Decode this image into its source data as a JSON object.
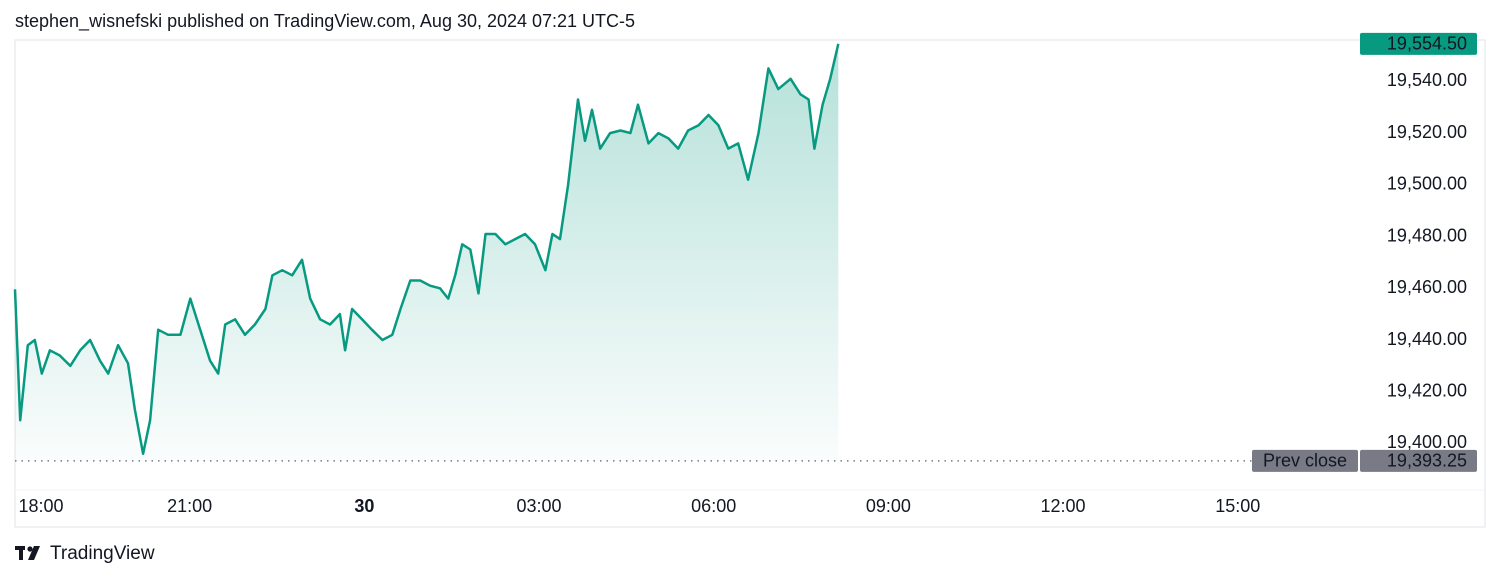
{
  "chart_data": {
    "type": "area",
    "title": "stephen_wisnefski published on TradingView.com, Aug 30, 2024 07:21 UTC-5",
    "brand": "TradingView",
    "grid": false,
    "series": [
      {
        "color": "#089981",
        "x": [
          18.0,
          18.09,
          18.22,
          18.34,
          18.46,
          18.6,
          18.77,
          18.95,
          19.12,
          19.29,
          19.46,
          19.6,
          19.77,
          19.94,
          20.06,
          20.2,
          20.32,
          20.46,
          20.63,
          20.84,
          21.01,
          21.18,
          21.35,
          21.49,
          21.61,
          21.78,
          21.95,
          22.12,
          22.3,
          22.42,
          22.59,
          22.76,
          22.93,
          23.07,
          23.24,
          23.41,
          23.58,
          23.67,
          23.79,
          23.96,
          24.13,
          24.31,
          24.48,
          24.62,
          24.79,
          24.96,
          25.13,
          25.3,
          25.44,
          25.56,
          25.68,
          25.82,
          25.96,
          26.08,
          26.25,
          26.42,
          26.59,
          26.76,
          26.93,
          27.11,
          27.23,
          27.36,
          27.5,
          27.67,
          27.79,
          27.91,
          28.05,
          28.22,
          28.4,
          28.57,
          28.7,
          28.88,
          29.05,
          29.22,
          29.39,
          29.56,
          29.74,
          29.91,
          30.08,
          30.25,
          30.42,
          30.59,
          30.77,
          30.94,
          31.11,
          31.32,
          31.49,
          31.63,
          31.73,
          31.87,
          32.0,
          32.14
        ],
        "values": [
          19459.6,
          19409,
          19438,
          19440,
          19427,
          19436,
          19434,
          19430,
          19436,
          19440,
          19432,
          19427,
          19438,
          19431,
          19413,
          19396,
          19409,
          19444,
          19442,
          19442,
          19456,
          19444,
          19432,
          19427,
          19446,
          19448,
          19442,
          19446,
          19452,
          19465,
          19467,
          19465,
          19471,
          19456,
          19448,
          19446,
          19450,
          19436,
          19452,
          19448,
          19444,
          19440,
          19442,
          19452,
          19463,
          19463,
          19461,
          19460,
          19456,
          19465,
          19477,
          19475,
          19458,
          19481,
          19481,
          19477,
          19479,
          19481,
          19477,
          19467,
          19481,
          19479,
          19500,
          19533,
          19517,
          19529,
          19514,
          19520,
          19521,
          19520,
          19531,
          19516,
          19520,
          19518,
          19514,
          19521,
          19523,
          19527,
          19523,
          19514,
          19516,
          19502,
          19520,
          19545,
          19537,
          19541,
          19535,
          19533,
          19514,
          19531,
          19541,
          19554.5
        ]
      }
    ],
    "last_price": {
      "value": 19554.5,
      "label": "19,554.50"
    },
    "prev_close": {
      "name": "Prev close",
      "value": 19393.25,
      "label": "19,393.25"
    },
    "xlim": [
      18,
      41.1
    ],
    "xticks": [
      {
        "value": 18,
        "label": "18:00"
      },
      {
        "value": 21,
        "label": "21:00"
      },
      {
        "value": 24,
        "label": "30"
      },
      {
        "value": 27,
        "label": "03:00"
      },
      {
        "value": 30,
        "label": "06:00"
      },
      {
        "value": 33,
        "label": "09:00"
      },
      {
        "value": 36,
        "label": "12:00"
      },
      {
        "value": 39,
        "label": "15:00"
      }
    ],
    "ylim": [
      19382,
      19556
    ],
    "yticks": [
      {
        "value": 19400,
        "label": "19,400.00"
      },
      {
        "value": 19420,
        "label": "19,420.00"
      },
      {
        "value": 19440,
        "label": "19,440.00"
      },
      {
        "value": 19460,
        "label": "19,460.00"
      },
      {
        "value": 19480,
        "label": "19,480.00"
      },
      {
        "value": 19500,
        "label": "19,500.00"
      },
      {
        "value": 19520,
        "label": "19,520.00"
      },
      {
        "value": 19540,
        "label": "19,540.00"
      }
    ]
  }
}
